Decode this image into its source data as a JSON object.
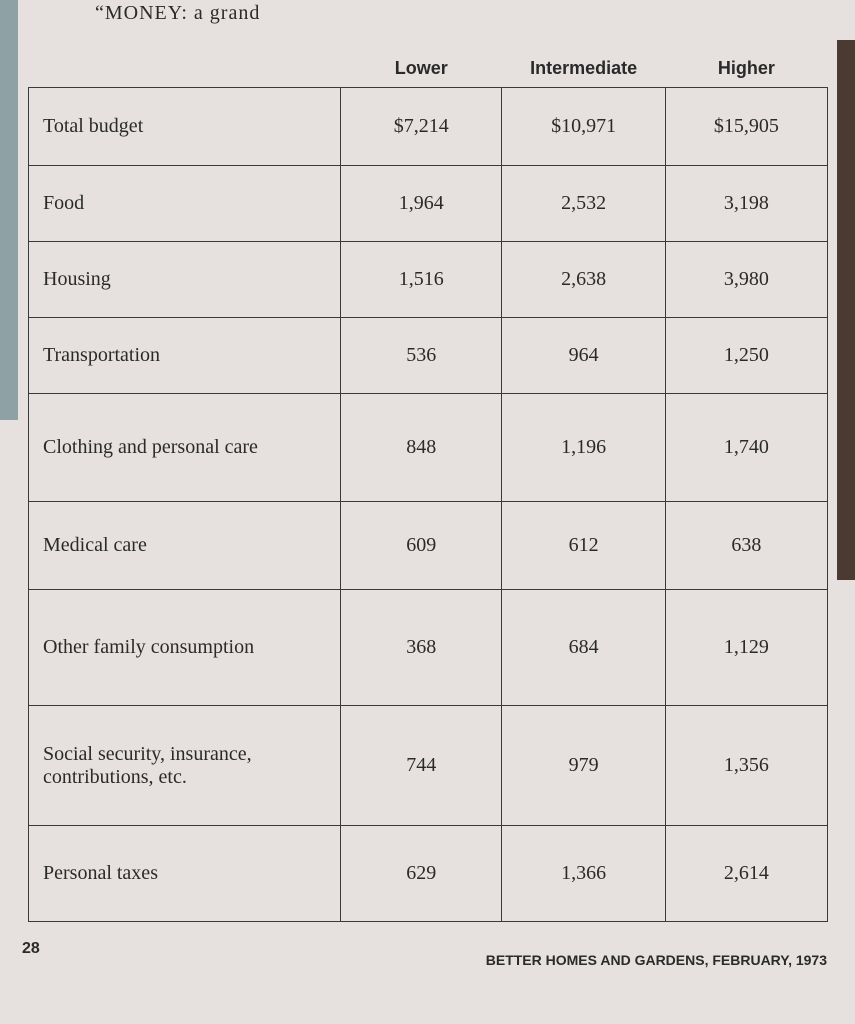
{
  "header": {
    "title": "“MONEY: a grand"
  },
  "table": {
    "columns": [
      "Lower",
      "Intermediate",
      "Higher"
    ],
    "rows": [
      [
        "Total budget",
        "$7,214",
        "$10,971",
        "$15,905"
      ],
      [
        "Food",
        "1,964",
        "2,532",
        "3,198"
      ],
      [
        "Housing",
        "1,516",
        "2,638",
        "3,980"
      ],
      [
        "Transportation",
        "536",
        "964",
        "1,250"
      ],
      [
        "Clothing and personal care",
        "848",
        "1,196",
        "1,740"
      ],
      [
        "Medical care",
        "609",
        "612",
        "638"
      ],
      [
        "Other family consumption",
        "368",
        "684",
        "1,129"
      ],
      [
        "Social security, insurance, contributions, etc.",
        "744",
        "979",
        "1,356"
      ],
      [
        "Personal taxes",
        "629",
        "1,366",
        "2,614"
      ]
    ]
  },
  "footer": {
    "page_number": "28",
    "source": "BETTER HOMES AND GARDENS, FEBRUARY, 1973"
  }
}
